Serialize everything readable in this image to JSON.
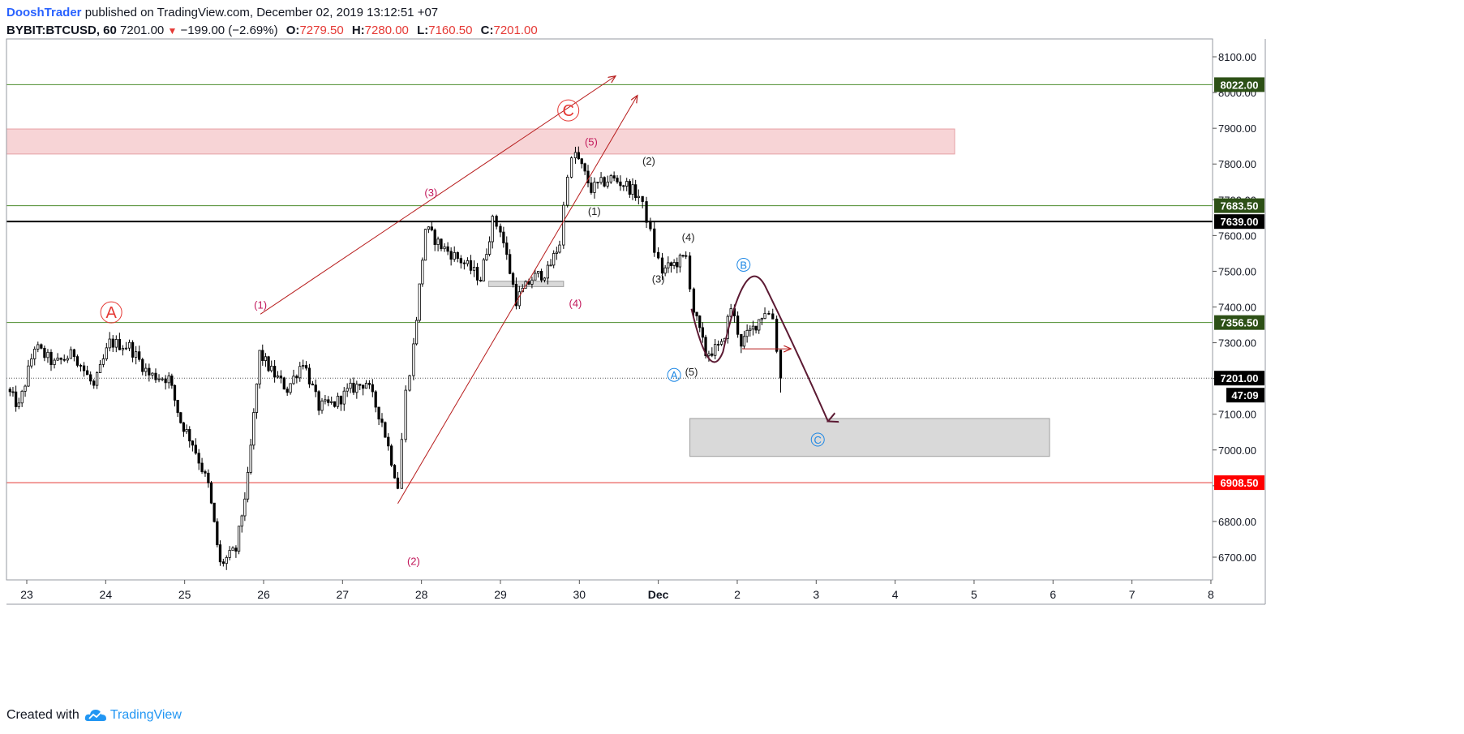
{
  "header": {
    "author": "DooshTrader",
    "published_text": " published on TradingView.com, December 02, 2019 13:12:51 +07",
    "symbol": "BYBIT:BTCUSD, 60",
    "last": "7201.00",
    "change": "−199.00 (−2.69%)",
    "o_label": "O:",
    "o": "7279.50",
    "h_label": "H:",
    "h": "7280.00",
    "l_label": "L:",
    "l": "7160.50",
    "c_label": "C:",
    "c": "7201.00"
  },
  "footer": {
    "created_with": "Created with",
    "brand": "TradingView"
  },
  "colors": {
    "up": "#ffffff",
    "down": "#000000",
    "wick": "#000000",
    "green_line": "#4c8c2b",
    "red_line": "#e53935",
    "wave_label": "#c2185b",
    "blue_label": "#2962ff",
    "dark_red": "#b71c1c",
    "arc": "#5c1a33"
  },
  "chart_data": {
    "type": "candlestick",
    "title": "",
    "ylim": [
      6640,
      8160
    ],
    "x_ticks": [
      "23",
      "24",
      "25",
      "26",
      "27",
      "28",
      "29",
      "30",
      "Dec",
      "2",
      "3",
      "4",
      "5",
      "6",
      "7",
      "8"
    ],
    "y_ticks": [
      "6700.00",
      "6800.00",
      "6900.00",
      "7000.00",
      "7100.00",
      "7200.00",
      "7300.00",
      "7400.00",
      "7500.00",
      "7600.00",
      "7700.00",
      "7800.00",
      "7900.00",
      "8000.00",
      "8100.00"
    ],
    "horizontal_levels": [
      {
        "price": 8022,
        "label": "8022.00",
        "kind": "green"
      },
      {
        "price": 7683.5,
        "label": "7683.50",
        "kind": "green"
      },
      {
        "price": 7639,
        "label": "7639.00",
        "kind": "black"
      },
      {
        "price": 7356.5,
        "label": "7356.50",
        "kind": "green"
      },
      {
        "price": 7201,
        "label": "7201.00",
        "kind": "last"
      },
      {
        "price": 6908.5,
        "label": "6908.50",
        "kind": "red"
      }
    ],
    "countdown": "47:09",
    "zones": [
      {
        "name": "resistance-zone",
        "x0": 22.0,
        "x1": 34.0,
        "y0": 7828,
        "y1": 7898,
        "kind": "red"
      },
      {
        "name": "target-zone",
        "x0": 31.4,
        "x1": 34.0,
        "y0": 6982,
        "y1": 7088,
        "kind": "gray"
      },
      {
        "name": "consolidation-box",
        "x0": 28.85,
        "x1": 29.8,
        "y0": 7457,
        "y1": 7472,
        "kind": "gray"
      }
    ],
    "wave_labels": [
      {
        "text": "A",
        "x": 24.07,
        "y": 7385,
        "style": "circle-red"
      },
      {
        "text": "C",
        "x": 29.86,
        "y": 7950,
        "style": "circle-red"
      },
      {
        "text": "(1)",
        "x": 25.96,
        "y": 7395,
        "style": "pink"
      },
      {
        "text": "(2)",
        "x": 27.9,
        "y": 6678,
        "style": "pink"
      },
      {
        "text": "(3)",
        "x": 28.12,
        "y": 7710,
        "style": "pink"
      },
      {
        "text": "(4)",
        "x": 29.95,
        "y": 7400,
        "style": "pink"
      },
      {
        "text": "(5)",
        "x": 30.15,
        "y": 7852,
        "style": "pink"
      },
      {
        "text": "(1)",
        "x": 30.19,
        "y": 7658,
        "style": "dark"
      },
      {
        "text": "(2)",
        "x": 30.88,
        "y": 7798,
        "style": "dark"
      },
      {
        "text": "(3)",
        "x": 31.0,
        "y": 7468,
        "style": "dark"
      },
      {
        "text": "(4)",
        "x": 31.38,
        "y": 7585,
        "style": "dark"
      },
      {
        "text": "(5)",
        "x": 31.42,
        "y": 7208,
        "style": "dark"
      },
      {
        "text": "A",
        "x": 31.2,
        "y": 7210,
        "style": "circle-blue"
      },
      {
        "text": "B",
        "x": 32.08,
        "y": 7518,
        "style": "circle-blue"
      },
      {
        "text": "C",
        "x": 33.02,
        "y": 7029,
        "style": "circle-blue"
      }
    ],
    "ohlc_anchors": [
      {
        "x": 22.75,
        "price": 7170
      },
      {
        "x": 22.9,
        "price": 7120
      },
      {
        "x": 23.1,
        "price": 7290
      },
      {
        "x": 23.35,
        "price": 7240
      },
      {
        "x": 23.6,
        "price": 7270
      },
      {
        "x": 23.85,
        "price": 7175
      },
      {
        "x": 24.05,
        "price": 7300
      },
      {
        "x": 24.3,
        "price": 7290
      },
      {
        "x": 24.55,
        "price": 7210
      },
      {
        "x": 24.8,
        "price": 7200
      },
      {
        "x": 24.95,
        "price": 7080
      },
      {
        "x": 25.1,
        "price": 7020
      },
      {
        "x": 25.3,
        "price": 6900
      },
      {
        "x": 25.45,
        "price": 6680
      },
      {
        "x": 25.65,
        "price": 6720
      },
      {
        "x": 25.8,
        "price": 6920
      },
      {
        "x": 25.95,
        "price": 7270
      },
      {
        "x": 26.1,
        "price": 7220
      },
      {
        "x": 26.3,
        "price": 7170
      },
      {
        "x": 26.5,
        "price": 7250
      },
      {
        "x": 26.7,
        "price": 7120
      },
      {
        "x": 26.9,
        "price": 7130
      },
      {
        "x": 27.1,
        "price": 7170
      },
      {
        "x": 27.3,
        "price": 7190
      },
      {
        "x": 27.5,
        "price": 7080
      },
      {
        "x": 27.7,
        "price": 6900
      },
      {
        "x": 27.8,
        "price": 7160
      },
      {
        "x": 27.9,
        "price": 7290
      },
      {
        "x": 28.05,
        "price": 7620
      },
      {
        "x": 28.25,
        "price": 7570
      },
      {
        "x": 28.5,
        "price": 7530
      },
      {
        "x": 28.75,
        "price": 7480
      },
      {
        "x": 28.9,
        "price": 7640
      },
      {
        "x": 29.0,
        "price": 7620
      },
      {
        "x": 29.2,
        "price": 7420
      },
      {
        "x": 29.4,
        "price": 7480
      },
      {
        "x": 29.6,
        "price": 7500
      },
      {
        "x": 29.75,
        "price": 7580
      },
      {
        "x": 29.85,
        "price": 7780
      },
      {
        "x": 29.95,
        "price": 7830
      },
      {
        "x": 30.15,
        "price": 7730
      },
      {
        "x": 30.4,
        "price": 7760
      },
      {
        "x": 30.6,
        "price": 7740
      },
      {
        "x": 30.75,
        "price": 7710
      },
      {
        "x": 30.85,
        "price": 7650
      },
      {
        "x": 30.95,
        "price": 7560
      },
      {
        "x": 31.05,
        "price": 7500
      },
      {
        "x": 31.2,
        "price": 7520
      },
      {
        "x": 31.35,
        "price": 7540
      },
      {
        "x": 31.45,
        "price": 7390
      },
      {
        "x": 31.6,
        "price": 7270
      },
      {
        "x": 31.8,
        "price": 7290
      },
      {
        "x": 31.92,
        "price": 7400
      },
      {
        "x": 32.05,
        "price": 7300
      },
      {
        "x": 32.2,
        "price": 7340
      },
      {
        "x": 32.35,
        "price": 7390
      },
      {
        "x": 32.45,
        "price": 7370
      },
      {
        "x": 32.55,
        "price": 7201
      }
    ],
    "volatility": 22,
    "candle_step_days": 0.042
  }
}
